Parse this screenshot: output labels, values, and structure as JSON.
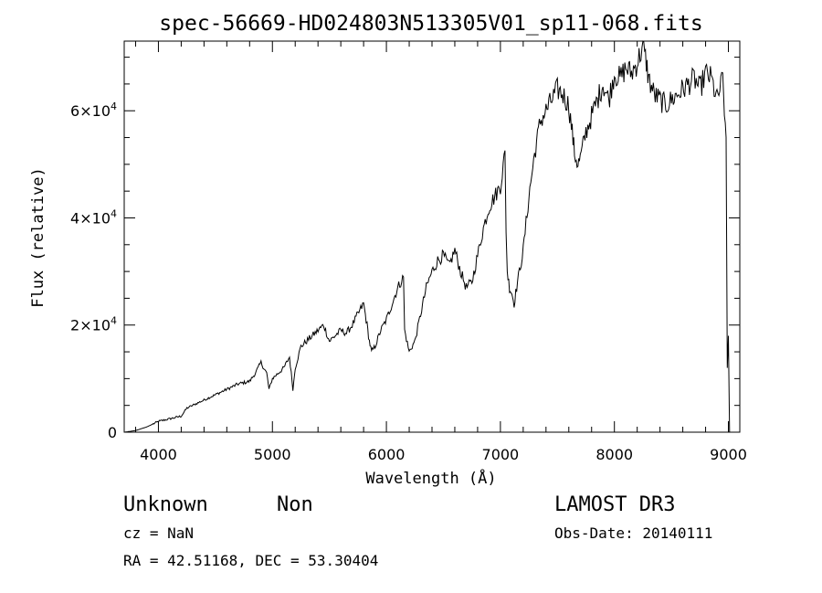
{
  "chart_data": {
    "type": "line",
    "title": "spec-56669-HD024803N513305V01_sp11-068.fits",
    "xlabel": "Wavelength (Å)",
    "ylabel": "Flux (relative)",
    "xlim": [
      3700,
      9100
    ],
    "ylim": [
      0,
      73000
    ],
    "x_ticks": [
      {
        "value": 4000,
        "label": "4000"
      },
      {
        "value": 5000,
        "label": "5000"
      },
      {
        "value": 6000,
        "label": "6000"
      },
      {
        "value": 7000,
        "label": "7000"
      },
      {
        "value": 8000,
        "label": "8000"
      },
      {
        "value": 9000,
        "label": "9000"
      }
    ],
    "y_ticks": [
      {
        "value": 0,
        "mantissa": "0",
        "exp": ""
      },
      {
        "value": 20000,
        "mantissa": "2×10",
        "exp": "4"
      },
      {
        "value": 40000,
        "mantissa": "4×10",
        "exp": "4"
      },
      {
        "value": 60000,
        "mantissa": "6×10",
        "exp": "4"
      }
    ],
    "x_minor_step": 200,
    "y_minor_step": 5000,
    "grid": false,
    "series": [
      {
        "x": [
          3700,
          3800,
          3900,
          4000,
          4100,
          4200,
          4250,
          4300,
          4400,
          4500,
          4600,
          4700,
          4800,
          4850,
          4900,
          4950,
          4970,
          5000,
          5100,
          5150,
          5180,
          5200,
          5250,
          5300,
          5350,
          5400,
          5450,
          5500,
          5550,
          5600,
          5650,
          5700,
          5750,
          5800,
          5830,
          5850,
          5870,
          5900,
          5950,
          6000,
          6050,
          6100,
          6150,
          6160,
          6200,
          6250,
          6300,
          6350,
          6400,
          6450,
          6500,
          6550,
          6600,
          6650,
          6700,
          6750,
          6800,
          6850,
          6900,
          6950,
          7000,
          7040,
          7050,
          7060,
          7080,
          7100,
          7120,
          7150,
          7200,
          7250,
          7300,
          7350,
          7400,
          7450,
          7500,
          7550,
          7600,
          7630,
          7650,
          7680,
          7700,
          7750,
          7800,
          7850,
          7900,
          7950,
          8000,
          8050,
          8100,
          8150,
          8200,
          8250,
          8280,
          8300,
          8350,
          8400,
          8450,
          8500,
          8550,
          8600,
          8650,
          8700,
          8750,
          8800,
          8850,
          8900,
          8950,
          8980,
          8990,
          9000,
          9010
        ],
        "y": [
          0,
          300,
          1000,
          2000,
          2500,
          3000,
          4500,
          5000,
          6000,
          7000,
          8000,
          9000,
          9500,
          11000,
          13000,
          11000,
          8000,
          10000,
          12000,
          14000,
          8000,
          12000,
          16000,
          17000,
          18000,
          19000,
          20000,
          17000,
          18000,
          19000,
          18500,
          20000,
          22000,
          24000,
          20000,
          17000,
          15000,
          16000,
          19000,
          21000,
          24000,
          27000,
          29000,
          19000,
          15000,
          17000,
          22000,
          27000,
          30000,
          32000,
          33000,
          31000,
          34000,
          30000,
          27000,
          28000,
          33000,
          38000,
          42000,
          44000,
          46000,
          52000,
          38000,
          30000,
          27000,
          26000,
          24000,
          28000,
          34000,
          44000,
          52000,
          58000,
          60000,
          62000,
          64000,
          63000,
          61000,
          56000,
          52000,
          50000,
          51000,
          56000,
          59000,
          62000,
          65000,
          62000,
          67000,
          66000,
          68000,
          67000,
          69000,
          72000,
          69000,
          66000,
          63000,
          62000,
          61000,
          62000,
          63000,
          64000,
          65000,
          66000,
          64000,
          67000,
          66000,
          62000,
          66000,
          55000,
          12000,
          18000,
          0
        ]
      }
    ]
  },
  "info": {
    "class": "Unknown",
    "subclass": "Non",
    "survey": "LAMOST DR3",
    "cz": "cz = NaN",
    "obs_date": "Obs-Date: 20140111",
    "radec": "RA =  42.51168, DEC =  53.30404"
  }
}
